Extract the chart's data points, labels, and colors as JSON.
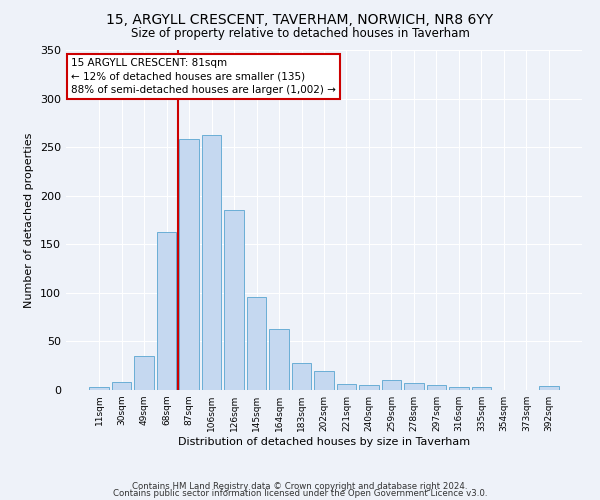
{
  "title1": "15, ARGYLL CRESCENT, TAVERHAM, NORWICH, NR8 6YY",
  "title2": "Size of property relative to detached houses in Taverham",
  "xlabel": "Distribution of detached houses by size in Taverham",
  "ylabel": "Number of detached properties",
  "categories": [
    "11sqm",
    "30sqm",
    "49sqm",
    "68sqm",
    "87sqm",
    "106sqm",
    "126sqm",
    "145sqm",
    "164sqm",
    "183sqm",
    "202sqm",
    "221sqm",
    "240sqm",
    "259sqm",
    "278sqm",
    "297sqm",
    "316sqm",
    "335sqm",
    "354sqm",
    "373sqm",
    "392sqm"
  ],
  "values": [
    3,
    8,
    35,
    163,
    258,
    263,
    185,
    96,
    63,
    28,
    20,
    6,
    5,
    10,
    7,
    5,
    3,
    3,
    0,
    0,
    4
  ],
  "bar_color": "#c5d8f0",
  "bar_edge_color": "#6aaed6",
  "annotation_text": "15 ARGYLL CRESCENT: 81sqm\n← 12% of detached houses are smaller (135)\n88% of semi-detached houses are larger (1,002) →",
  "annotation_box_color": "#ffffff",
  "annotation_box_edge_color": "#cc0000",
  "vline_color": "#cc0000",
  "footer1": "Contains HM Land Registry data © Crown copyright and database right 2024.",
  "footer2": "Contains public sector information licensed under the Open Government Licence v3.0.",
  "bg_color": "#eef2f9",
  "plot_bg_color": "#eef2f9",
  "grid_color": "#ffffff",
  "ylim": [
    0,
    350
  ],
  "figsize": [
    6.0,
    5.0
  ],
  "dpi": 100
}
